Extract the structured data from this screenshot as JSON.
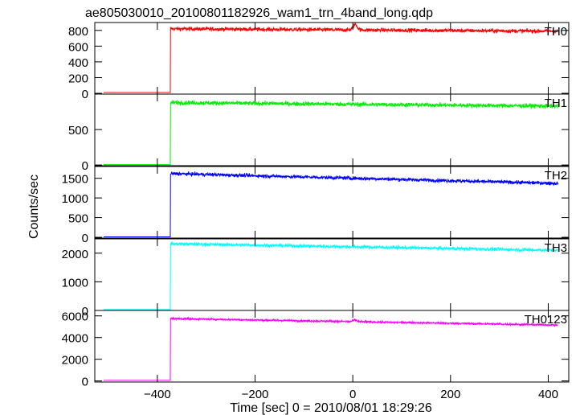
{
  "title": "ae805030010_20100801182926_wam1_trn_4band_long.qdp",
  "chart_data": {
    "type": "line",
    "title": "ae805030010_20100801182926_wam1_trn_4band_long.qdp",
    "xlabel": "Time [sec] 0 = 2010/08/01 18:29:26",
    "ylabel": "Counts/sec",
    "xlim": [
      -528,
      442
    ],
    "xticks": [
      -400,
      -200,
      0,
      200,
      400
    ],
    "xtick_labels": [
      "−400",
      "−200",
      "0",
      "200",
      "400"
    ],
    "step_time": -373,
    "x_range": [
      -510,
      420
    ],
    "grid": false,
    "panels": [
      {
        "name": "TH0",
        "color": "#ff0000",
        "ylim": [
          -10,
          900
        ],
        "yticks": [
          0,
          200,
          400,
          600,
          800
        ],
        "pre_level": 10,
        "post_start": 820,
        "post_end": 790,
        "noise": 25,
        "bump_time": 5,
        "bump_height": 70
      },
      {
        "name": "TH1",
        "color": "#00ee00",
        "ylim": [
          -10,
          1000
        ],
        "yticks": [
          0,
          500
        ],
        "pre_level": 5,
        "post_start": 880,
        "post_end": 830,
        "noise": 30,
        "bump_time": 5,
        "bump_height": 0
      },
      {
        "name": "TH2",
        "color": "#0000ff",
        "ylim": [
          -20,
          1800
        ],
        "yticks": [
          0,
          500,
          1000,
          1500
        ],
        "pre_level": 10,
        "post_start": 1620,
        "post_end": 1370,
        "noise": 45,
        "bump_time": 5,
        "bump_height": 0
      },
      {
        "name": "TH3",
        "color": "#00ffff",
        "ylim": [
          0,
          2500
        ],
        "yticks": [
          0,
          1000,
          2000
        ],
        "pre_level": 30,
        "post_start": 2330,
        "post_end": 2100,
        "noise": 60,
        "bump_time": 5,
        "bump_height": 0
      },
      {
        "name": "TH0123",
        "color": "#ff00ff",
        "ylim": [
          -100,
          6500
        ],
        "yticks": [
          0,
          2000,
          4000,
          6000
        ],
        "pre_level": 60,
        "post_start": 5750,
        "post_end": 5150,
        "noise": 90,
        "bump_time": 5,
        "bump_height": 150
      }
    ]
  }
}
